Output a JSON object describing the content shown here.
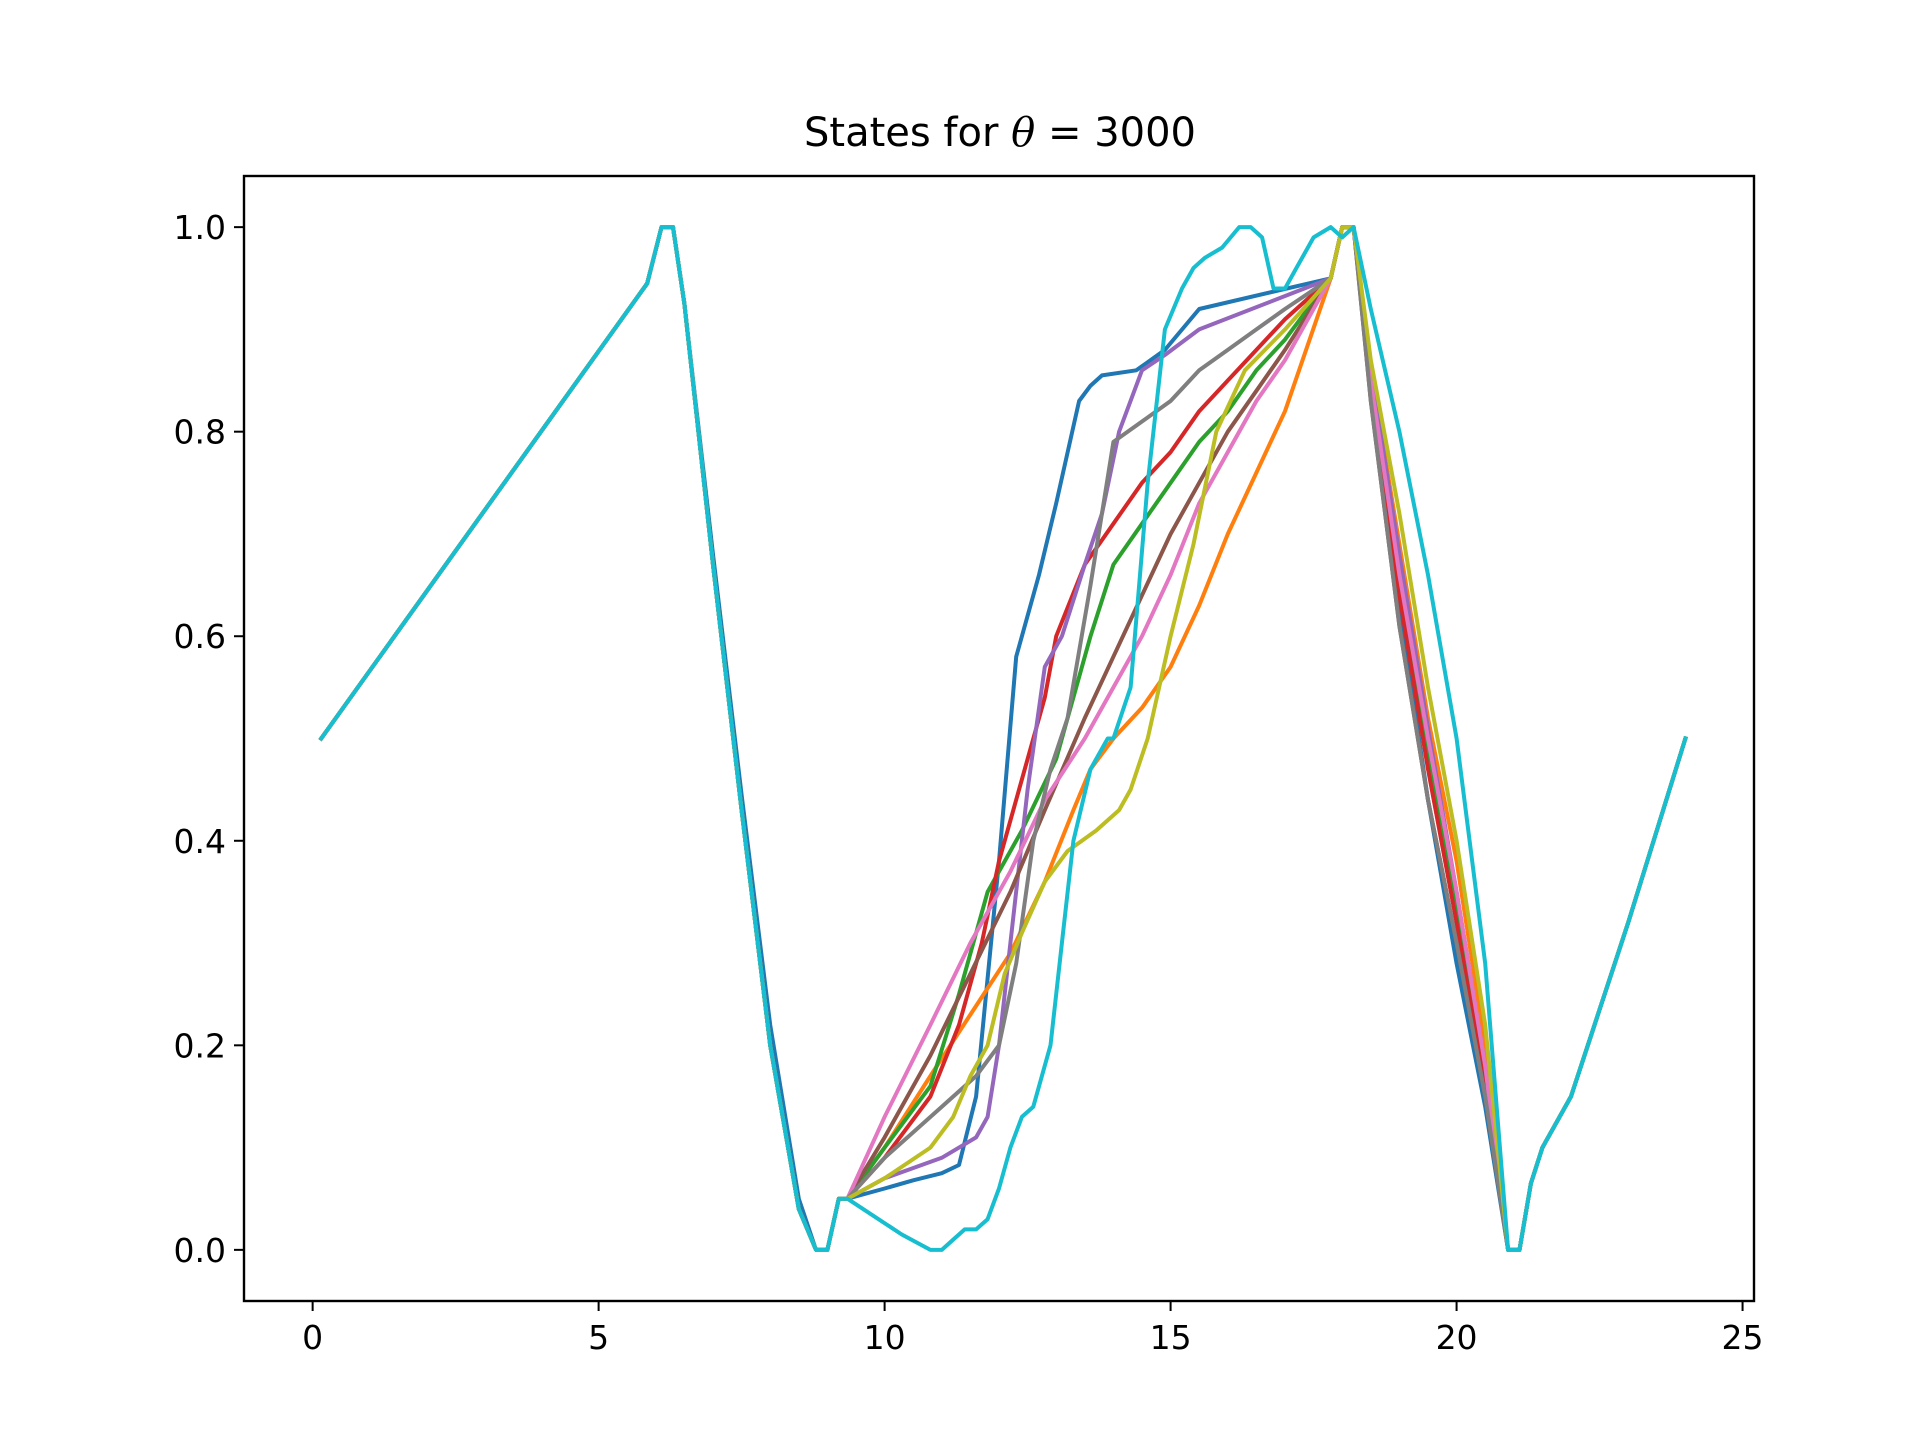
{
  "chart_data": {
    "type": "line",
    "title": "States for θ = 3000",
    "title_parts": {
      "prefix": "States for ",
      "symbol": "θ",
      "suffix": " = 3000"
    },
    "xlabel": "",
    "ylabel": "",
    "xlim": [
      -1.2,
      25.2
    ],
    "ylim": [
      -0.05,
      1.05
    ],
    "xticks": [
      0,
      5,
      10,
      15,
      20,
      25
    ],
    "xtick_labels": [
      "0",
      "5",
      "10",
      "15",
      "20",
      "25"
    ],
    "yticks": [
      0.0,
      0.2,
      0.4,
      0.6,
      0.8,
      1.0
    ],
    "ytick_labels": [
      "0.0",
      "0.2",
      "0.4",
      "0.6",
      "0.8",
      "1.0"
    ],
    "grid": false,
    "legend": "none",
    "series": [
      {
        "color": "#1f77b4",
        "x": [
          0.15,
          5.85,
          6.1,
          6.3,
          6.5,
          7.0,
          7.5,
          8.0,
          8.5,
          8.8,
          9.0,
          9.2,
          9.35,
          10.0,
          10.5,
          11.0,
          11.3,
          11.6,
          12.0,
          12.3,
          12.7,
          13.0,
          13.4,
          13.6,
          13.8,
          14.4,
          14.9,
          15.5,
          17.8,
          18.0,
          18.2,
          18.5,
          19.0,
          19.5,
          20.0,
          20.5,
          20.9,
          21.1,
          21.3,
          21.5,
          22.0,
          23.0,
          24.0
        ],
        "y": [
          0.5,
          0.945,
          1.0,
          1.0,
          0.925,
          0.68,
          0.445,
          0.22,
          0.05,
          0.0,
          0.0,
          0.05,
          0.05,
          0.06,
          0.068,
          0.075,
          0.083,
          0.15,
          0.38,
          0.58,
          0.66,
          0.73,
          0.83,
          0.845,
          0.855,
          0.86,
          0.88,
          0.92,
          0.95,
          1.0,
          1.0,
          0.84,
          0.63,
          0.44,
          0.28,
          0.14,
          0.0,
          0.0,
          0.065,
          0.1,
          0.15,
          0.32,
          0.5
        ]
      },
      {
        "color": "#ff7f0e",
        "x": [
          0.15,
          5.85,
          6.1,
          6.3,
          6.5,
          7.0,
          7.5,
          8.0,
          8.5,
          8.8,
          9.0,
          9.2,
          9.35,
          10.0,
          10.8,
          11.5,
          12.2,
          12.8,
          13.3,
          13.6,
          14.0,
          14.5,
          15.0,
          15.5,
          16.0,
          16.5,
          17.0,
          17.8,
          18.0,
          18.2,
          18.5,
          19.0,
          19.5,
          20.0,
          20.5,
          20.9,
          21.1,
          21.3,
          21.5,
          22.0,
          23.0,
          24.0
        ],
        "y": [
          0.5,
          0.945,
          1.0,
          1.0,
          0.925,
          0.67,
          0.43,
          0.2,
          0.04,
          0.0,
          0.0,
          0.05,
          0.05,
          0.1,
          0.17,
          0.23,
          0.29,
          0.36,
          0.43,
          0.47,
          0.5,
          0.53,
          0.57,
          0.63,
          0.7,
          0.76,
          0.82,
          0.95,
          1.0,
          1.0,
          0.86,
          0.69,
          0.52,
          0.38,
          0.2,
          0.0,
          0.0,
          0.065,
          0.1,
          0.15,
          0.32,
          0.5
        ]
      },
      {
        "color": "#2ca02c",
        "x": [
          0.15,
          5.85,
          6.1,
          6.3,
          6.5,
          7.0,
          7.5,
          8.0,
          8.5,
          8.8,
          9.0,
          9.2,
          9.35,
          10.0,
          10.8,
          11.3,
          11.8,
          12.4,
          13.0,
          13.6,
          14.0,
          14.5,
          15.0,
          15.5,
          16.0,
          16.5,
          17.0,
          17.8,
          18.0,
          18.2,
          18.5,
          19.0,
          19.5,
          20.0,
          20.5,
          20.9,
          21.1,
          21.3,
          21.5,
          22.0,
          23.0,
          24.0
        ],
        "y": [
          0.5,
          0.945,
          1.0,
          1.0,
          0.925,
          0.67,
          0.43,
          0.2,
          0.04,
          0.0,
          0.0,
          0.05,
          0.05,
          0.1,
          0.16,
          0.25,
          0.35,
          0.41,
          0.48,
          0.6,
          0.67,
          0.71,
          0.75,
          0.79,
          0.82,
          0.86,
          0.89,
          0.95,
          1.0,
          1.0,
          0.85,
          0.65,
          0.48,
          0.33,
          0.17,
          0.0,
          0.0,
          0.065,
          0.1,
          0.15,
          0.32,
          0.5
        ]
      },
      {
        "color": "#d62728",
        "x": [
          0.15,
          5.85,
          6.1,
          6.3,
          6.5,
          7.0,
          7.5,
          8.0,
          8.5,
          8.8,
          9.0,
          9.2,
          9.35,
          10.0,
          10.8,
          11.3,
          11.7,
          12.0,
          12.4,
          12.8,
          13.0,
          13.5,
          14.0,
          14.5,
          15.0,
          15.5,
          16.0,
          16.5,
          17.0,
          17.8,
          18.0,
          18.2,
          18.5,
          19.0,
          19.5,
          20.0,
          20.5,
          20.9,
          21.1,
          21.3,
          21.5,
          22.0,
          23.0,
          24.0
        ],
        "y": [
          0.5,
          0.945,
          1.0,
          1.0,
          0.925,
          0.67,
          0.43,
          0.2,
          0.04,
          0.0,
          0.0,
          0.05,
          0.05,
          0.09,
          0.15,
          0.22,
          0.3,
          0.38,
          0.46,
          0.54,
          0.6,
          0.67,
          0.71,
          0.75,
          0.78,
          0.82,
          0.85,
          0.88,
          0.91,
          0.95,
          1.0,
          1.0,
          0.84,
          0.64,
          0.47,
          0.32,
          0.16,
          0.0,
          0.0,
          0.065,
          0.1,
          0.15,
          0.32,
          0.5
        ]
      },
      {
        "color": "#9467bd",
        "x": [
          0.15,
          5.85,
          6.1,
          6.3,
          6.5,
          7.0,
          7.5,
          8.0,
          8.5,
          8.8,
          9.0,
          9.2,
          9.35,
          10.0,
          11.0,
          11.6,
          11.8,
          12.0,
          12.2,
          12.5,
          12.8,
          13.1,
          13.5,
          13.8,
          14.1,
          14.5,
          14.9,
          15.5,
          17.8,
          18.0,
          18.2,
          18.5,
          19.0,
          19.5,
          20.0,
          20.5,
          20.9,
          21.1,
          21.3,
          21.5,
          22.0,
          23.0,
          24.0
        ],
        "y": [
          0.5,
          0.945,
          1.0,
          1.0,
          0.925,
          0.67,
          0.43,
          0.2,
          0.04,
          0.0,
          0.0,
          0.05,
          0.05,
          0.07,
          0.09,
          0.11,
          0.13,
          0.2,
          0.3,
          0.45,
          0.57,
          0.6,
          0.67,
          0.72,
          0.8,
          0.86,
          0.875,
          0.9,
          0.95,
          1.0,
          1.0,
          0.86,
          0.68,
          0.51,
          0.35,
          0.18,
          0.0,
          0.0,
          0.065,
          0.1,
          0.15,
          0.32,
          0.5
        ]
      },
      {
        "color": "#8c564b",
        "x": [
          0.15,
          5.85,
          6.1,
          6.3,
          6.5,
          7.0,
          7.5,
          8.0,
          8.5,
          8.8,
          9.0,
          9.2,
          9.35,
          10.0,
          10.8,
          11.5,
          12.2,
          12.8,
          13.5,
          14.0,
          14.5,
          15.0,
          15.5,
          16.0,
          16.5,
          17.0,
          17.8,
          18.0,
          18.2,
          18.5,
          19.0,
          19.5,
          20.0,
          20.5,
          20.9,
          21.1,
          21.3,
          21.5,
          22.0,
          23.0,
          24.0
        ],
        "y": [
          0.5,
          0.945,
          1.0,
          1.0,
          0.925,
          0.67,
          0.43,
          0.2,
          0.04,
          0.0,
          0.0,
          0.05,
          0.05,
          0.11,
          0.19,
          0.27,
          0.35,
          0.43,
          0.52,
          0.58,
          0.64,
          0.7,
          0.75,
          0.8,
          0.84,
          0.88,
          0.95,
          1.0,
          1.0,
          0.83,
          0.61,
          0.44,
          0.3,
          0.15,
          0.0,
          0.0,
          0.065,
          0.1,
          0.15,
          0.32,
          0.5
        ]
      },
      {
        "color": "#e377c2",
        "x": [
          0.15,
          5.85,
          6.1,
          6.3,
          6.5,
          7.0,
          7.5,
          8.0,
          8.5,
          8.8,
          9.0,
          9.2,
          9.35,
          10.0,
          10.8,
          11.5,
          12.2,
          12.8,
          13.5,
          14.0,
          14.5,
          15.0,
          15.5,
          16.0,
          16.5,
          17.0,
          17.8,
          18.0,
          18.2,
          18.5,
          19.0,
          19.5,
          20.0,
          20.5,
          20.9,
          21.1,
          21.3,
          21.5,
          22.0,
          23.0,
          24.0
        ],
        "y": [
          0.5,
          0.945,
          1.0,
          1.0,
          0.925,
          0.67,
          0.43,
          0.2,
          0.04,
          0.0,
          0.0,
          0.05,
          0.05,
          0.13,
          0.22,
          0.3,
          0.37,
          0.44,
          0.5,
          0.55,
          0.6,
          0.66,
          0.73,
          0.78,
          0.83,
          0.87,
          0.95,
          1.0,
          1.0,
          0.85,
          0.66,
          0.5,
          0.35,
          0.18,
          0.0,
          0.0,
          0.065,
          0.1,
          0.15,
          0.32,
          0.5
        ]
      },
      {
        "color": "#7f7f7f",
        "x": [
          0.15,
          5.85,
          6.1,
          6.3,
          6.5,
          7.0,
          7.5,
          8.0,
          8.5,
          8.8,
          9.0,
          9.2,
          9.35,
          10.0,
          11.0,
          11.6,
          12.0,
          12.3,
          12.6,
          12.9,
          13.2,
          13.6,
          14.0,
          14.5,
          15.0,
          15.5,
          16.0,
          16.5,
          17.0,
          17.8,
          18.0,
          18.2,
          18.5,
          19.0,
          19.5,
          20.0,
          20.5,
          20.9,
          21.1,
          21.3,
          21.5,
          22.0,
          23.0,
          24.0
        ],
        "y": [
          0.5,
          0.945,
          1.0,
          1.0,
          0.925,
          0.67,
          0.43,
          0.2,
          0.04,
          0.0,
          0.0,
          0.05,
          0.05,
          0.09,
          0.14,
          0.17,
          0.2,
          0.28,
          0.4,
          0.47,
          0.52,
          0.65,
          0.79,
          0.81,
          0.83,
          0.86,
          0.88,
          0.9,
          0.92,
          0.95,
          1.0,
          1.0,
          0.83,
          0.61,
          0.44,
          0.3,
          0.15,
          0.0,
          0.0,
          0.065,
          0.1,
          0.15,
          0.32,
          0.5
        ]
      },
      {
        "color": "#bcbd22",
        "x": [
          0.15,
          5.85,
          6.1,
          6.3,
          6.5,
          7.0,
          7.5,
          8.0,
          8.5,
          8.8,
          9.0,
          9.2,
          9.35,
          10.0,
          10.8,
          11.2,
          11.5,
          11.8,
          12.1,
          12.4,
          12.8,
          13.2,
          13.7,
          14.1,
          14.3,
          14.6,
          15.0,
          15.4,
          15.8,
          16.3,
          17.0,
          17.8,
          18.0,
          18.2,
          18.5,
          19.0,
          19.5,
          20.0,
          20.5,
          20.9,
          21.1,
          21.3,
          21.5,
          22.0,
          23.0,
          24.0
        ],
        "y": [
          0.5,
          0.945,
          1.0,
          1.0,
          0.925,
          0.67,
          0.43,
          0.2,
          0.04,
          0.0,
          0.0,
          0.05,
          0.05,
          0.07,
          0.1,
          0.13,
          0.17,
          0.2,
          0.27,
          0.31,
          0.36,
          0.39,
          0.41,
          0.43,
          0.45,
          0.5,
          0.6,
          0.69,
          0.8,
          0.86,
          0.9,
          0.95,
          1.0,
          1.0,
          0.87,
          0.72,
          0.55,
          0.4,
          0.22,
          0.0,
          0.0,
          0.065,
          0.1,
          0.15,
          0.32,
          0.5
        ]
      },
      {
        "color": "#17becf",
        "x": [
          0.15,
          5.85,
          6.1,
          6.3,
          6.5,
          7.0,
          7.5,
          8.0,
          8.5,
          8.8,
          9.0,
          9.2,
          9.35,
          10.3,
          10.8,
          11.0,
          11.2,
          11.4,
          11.6,
          11.8,
          12.0,
          12.2,
          12.4,
          12.6,
          12.9,
          13.1,
          13.3,
          13.6,
          13.9,
          14.0,
          14.3,
          14.6,
          14.9,
          15.2,
          15.4,
          15.6,
          15.9,
          16.2,
          16.4,
          16.6,
          16.8,
          17.0,
          17.2,
          17.5,
          17.8,
          18.0,
          18.2,
          18.5,
          19.0,
          19.5,
          20.0,
          20.5,
          20.9,
          21.1,
          21.3,
          21.5,
          22.0,
          23.0,
          24.0
        ],
        "y": [
          0.5,
          0.945,
          1.0,
          1.0,
          0.925,
          0.67,
          0.43,
          0.2,
          0.04,
          0.0,
          0.0,
          0.05,
          0.05,
          0.015,
          0.0,
          0.0,
          0.01,
          0.02,
          0.02,
          0.03,
          0.06,
          0.1,
          0.13,
          0.14,
          0.2,
          0.3,
          0.4,
          0.47,
          0.5,
          0.5,
          0.55,
          0.75,
          0.9,
          0.94,
          0.96,
          0.97,
          0.98,
          1.0,
          1.0,
          0.99,
          0.94,
          0.94,
          0.96,
          0.99,
          1.0,
          0.99,
          1.0,
          0.92,
          0.8,
          0.66,
          0.5,
          0.28,
          0.0,
          0.0,
          0.065,
          0.1,
          0.15,
          0.32,
          0.5
        ]
      }
    ]
  }
}
